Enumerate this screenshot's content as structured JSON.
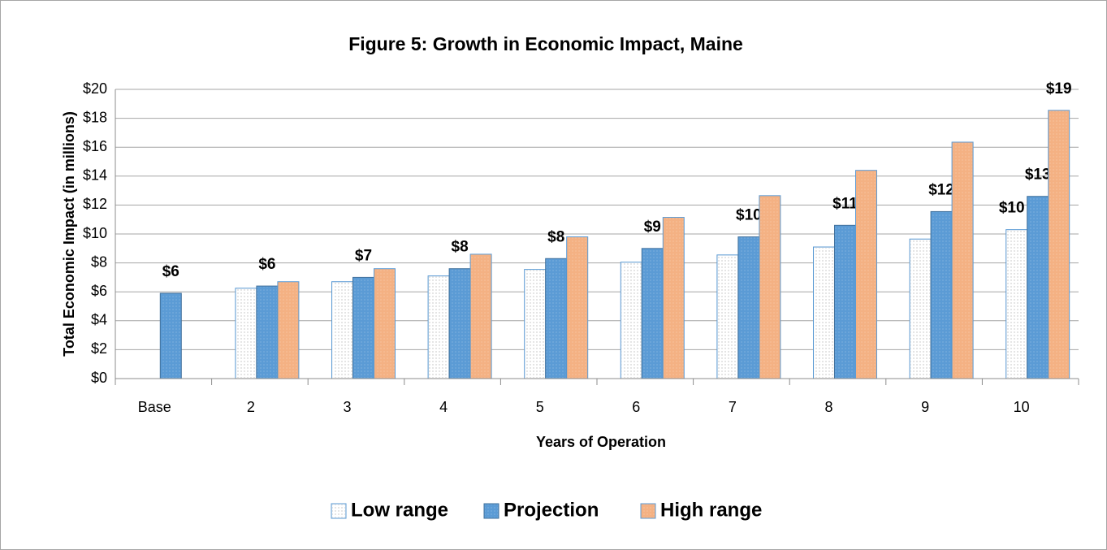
{
  "chart_data": {
    "type": "bar",
    "title": "Figure 5: Growth in Economic Impact, Maine",
    "x_label": "Years of Operation",
    "y_label": "Total Economic Impact (in millions)",
    "categories": [
      "Base",
      "2",
      "3",
      "4",
      "5",
      "6",
      "7",
      "8",
      "9",
      "10"
    ],
    "series": [
      {
        "name": "Low range",
        "color": "#f2f2f2",
        "border": "#5b9bd5",
        "values": [
          null,
          6.25,
          6.7,
          7.1,
          7.55,
          8.05,
          8.55,
          9.1,
          9.65,
          10.3
        ],
        "value_labels": [
          null,
          null,
          null,
          null,
          null,
          null,
          null,
          null,
          null,
          "$10"
        ]
      },
      {
        "name": "Projection",
        "color": "#5b9bd5",
        "border": "#41719c",
        "values": [
          5.9,
          6.4,
          7.0,
          7.6,
          8.3,
          9.0,
          9.8,
          10.6,
          11.55,
          12.6
        ],
        "value_labels": [
          "$6",
          "$6",
          "$7",
          "$8",
          "$8",
          "$9",
          "$10",
          "$11",
          "$12",
          "$13"
        ]
      },
      {
        "name": "High range",
        "color": "#f4b183",
        "border": "#5b9bd5",
        "values": [
          null,
          6.7,
          7.6,
          8.6,
          9.8,
          11.15,
          12.65,
          14.4,
          16.35,
          18.55
        ],
        "value_labels": [
          null,
          null,
          null,
          null,
          null,
          null,
          null,
          null,
          null,
          "$19"
        ]
      }
    ],
    "ylim": [
      0,
      20
    ],
    "yticks": [
      {
        "value": 0,
        "label": "$0"
      },
      {
        "value": 2,
        "label": "$2"
      },
      {
        "value": 4,
        "label": "$4"
      },
      {
        "value": 6,
        "label": "$6"
      },
      {
        "value": 8,
        "label": "$8"
      },
      {
        "value": 10,
        "label": "$10"
      },
      {
        "value": 12,
        "label": "$12"
      },
      {
        "value": 14,
        "label": "$14"
      },
      {
        "value": 16,
        "label": "$16"
      },
      {
        "value": 18,
        "label": "$18"
      },
      {
        "value": 20,
        "label": "$20"
      }
    ],
    "grid": true,
    "legend": "bottom"
  }
}
